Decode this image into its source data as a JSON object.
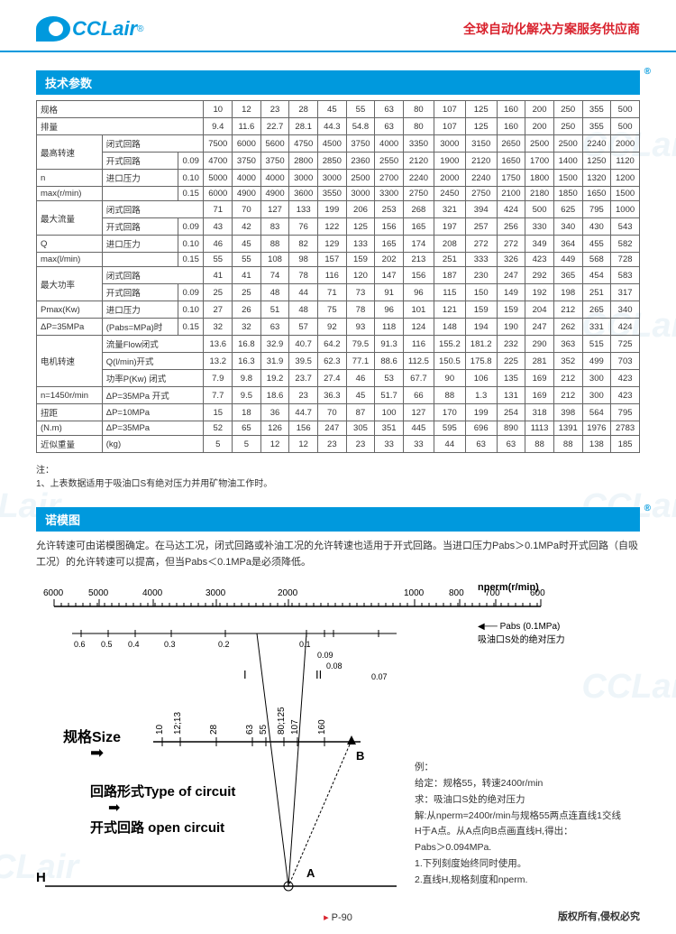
{
  "header": {
    "logo_text": "CCLair",
    "reg": "®",
    "tagline": "全球自动化解决方案服务供应商"
  },
  "section1_title": "技术参数",
  "table": {
    "sizes": [
      "10",
      "12",
      "23",
      "28",
      "45",
      "55",
      "63",
      "80",
      "107",
      "125",
      "160",
      "200",
      "250",
      "355",
      "500"
    ],
    "rows": [
      {
        "g": "规格",
        "s": "",
        "p": "",
        "v": [
          "10",
          "12",
          "23",
          "28",
          "45",
          "55",
          "63",
          "80",
          "107",
          "125",
          "160",
          "200",
          "250",
          "355",
          "500"
        ]
      },
      {
        "g": "排量",
        "s": "",
        "p": "",
        "v": [
          "9.4",
          "11.6",
          "22.7",
          "28.1",
          "44.3",
          "54.8",
          "63",
          "80",
          "107",
          "125",
          "160",
          "200",
          "250",
          "355",
          "500"
        ]
      },
      {
        "g": "最高转速",
        "s": "闭式回路",
        "p": "",
        "v": [
          "7500",
          "6000",
          "5600",
          "4750",
          "4500",
          "3750",
          "4000",
          "3350",
          "3000",
          "3150",
          "2650",
          "2500",
          "2500",
          "2240",
          "2000"
        ]
      },
      {
        "g": "",
        "s": "开式回路",
        "p": "0.09",
        "v": [
          "4700",
          "3750",
          "3750",
          "2800",
          "2850",
          "2360",
          "2550",
          "2120",
          "1900",
          "2120",
          "1650",
          "1700",
          "1400",
          "1250",
          "1120"
        ]
      },
      {
        "g": "n",
        "s": "进口压力",
        "p": "0.10",
        "v": [
          "5000",
          "4000",
          "4000",
          "3000",
          "3000",
          "2500",
          "2700",
          "2240",
          "2000",
          "2240",
          "1750",
          "1800",
          "1500",
          "1320",
          "1200"
        ]
      },
      {
        "g": "max(r/min)",
        "s": "",
        "p": "0.15",
        "v": [
          "6000",
          "4900",
          "4900",
          "3600",
          "3550",
          "3000",
          "3300",
          "2750",
          "2450",
          "2750",
          "2100",
          "2180",
          "1850",
          "1650",
          "1500"
        ]
      },
      {
        "g": "最大流量",
        "s": "闭式回路",
        "p": "",
        "v": [
          "71",
          "70",
          "127",
          "133",
          "199",
          "206",
          "253",
          "268",
          "321",
          "394",
          "424",
          "500",
          "625",
          "795",
          "1000"
        ]
      },
      {
        "g": "",
        "s": "开式回路",
        "p": "0.09",
        "v": [
          "43",
          "42",
          "83",
          "76",
          "122",
          "125",
          "156",
          "165",
          "197",
          "257",
          "256",
          "330",
          "340",
          "430",
          "543"
        ]
      },
      {
        "g": "Q",
        "s": "进口压力",
        "p": "0.10",
        "v": [
          "46",
          "45",
          "88",
          "82",
          "129",
          "133",
          "165",
          "174",
          "208",
          "272",
          "272",
          "349",
          "364",
          "455",
          "582"
        ]
      },
      {
        "g": "max(l/min)",
        "s": "",
        "p": "0.15",
        "v": [
          "55",
          "55",
          "108",
          "98",
          "157",
          "159",
          "202",
          "213",
          "251",
          "333",
          "326",
          "423",
          "449",
          "568",
          "728"
        ]
      },
      {
        "g": "最大功率",
        "s": "闭式回路",
        "p": "",
        "v": [
          "41",
          "41",
          "74",
          "78",
          "116",
          "120",
          "147",
          "156",
          "187",
          "230",
          "247",
          "292",
          "365",
          "454",
          "583"
        ]
      },
      {
        "g": "",
        "s": "开式回路",
        "p": "0.09",
        "v": [
          "25",
          "25",
          "48",
          "44",
          "71",
          "73",
          "91",
          "96",
          "115",
          "150",
          "149",
          "192",
          "198",
          "251",
          "317"
        ]
      },
      {
        "g": "Pmax(Kw)",
        "s": "进口压力",
        "p": "0.10",
        "v": [
          "27",
          "26",
          "51",
          "48",
          "75",
          "78",
          "96",
          "101",
          "121",
          "159",
          "159",
          "204",
          "212",
          "265",
          "340"
        ]
      },
      {
        "g": "ΔP=35MPa",
        "s": "(Pabs=MPa)时",
        "p": "0.15",
        "v": [
          "32",
          "32",
          "63",
          "57",
          "92",
          "93",
          "118",
          "124",
          "148",
          "194",
          "190",
          "247",
          "262",
          "331",
          "424"
        ]
      },
      {
        "g": "电机转速",
        "s": "流量Flow闭式",
        "p": "",
        "v": [
          "13.6",
          "16.8",
          "32.9",
          "40.7",
          "64.2",
          "79.5",
          "91.3",
          "116",
          "155.2",
          "181.2",
          "232",
          "290",
          "363",
          "515",
          "725"
        ]
      },
      {
        "g": "",
        "s": "Q(l/min)开式",
        "p": "",
        "v": [
          "13.2",
          "16.3",
          "31.9",
          "39.5",
          "62.3",
          "77.1",
          "88.6",
          "112.5",
          "150.5",
          "175.8",
          "225",
          "281",
          "352",
          "499",
          "703"
        ]
      },
      {
        "g": "",
        "s": "功率P(Kw) 闭式",
        "p": "",
        "v": [
          "7.9",
          "9.8",
          "19.2",
          "23.7",
          "27.4",
          "46",
          "53",
          "67.7",
          "90",
          "106",
          "135",
          "169",
          "212",
          "300",
          "423"
        ]
      },
      {
        "g": "n=1450r/min",
        "s": "ΔP=35MPa 开式",
        "p": "",
        "v": [
          "7.7",
          "9.5",
          "18.6",
          "23",
          "36.3",
          "45",
          "51.7",
          "66",
          "88",
          "1.3",
          "131",
          "169",
          "212",
          "300",
          "423"
        ]
      },
      {
        "g": "扭距",
        "s": "ΔP=10MPa",
        "p": "",
        "v": [
          "15",
          "18",
          "36",
          "44.7",
          "70",
          "87",
          "100",
          "127",
          "170",
          "199",
          "254",
          "318",
          "398",
          "564",
          "795"
        ]
      },
      {
        "g": "(N.m)",
        "s": "ΔP=35MPa",
        "p": "",
        "v": [
          "52",
          "65",
          "126",
          "156",
          "247",
          "305",
          "351",
          "445",
          "595",
          "696",
          "890",
          "1113",
          "1391",
          "1976",
          "2783"
        ]
      },
      {
        "g": "近似重量",
        "s": "(kg)",
        "p": "",
        "v": [
          "5",
          "5",
          "12",
          "12",
          "23",
          "23",
          "33",
          "33",
          "44",
          "63",
          "63",
          "88",
          "88",
          "138",
          "185"
        ]
      }
    ]
  },
  "note_label": "注：",
  "note_text": "1、上表数据适用于吸油口S有绝对压力并用矿物油工作时。",
  "section2_title": "诺模图",
  "body_text": "允许转速可由诺模图确定。在马达工况，闭式回路或补油工况的允许转速也适用于开式回路。当进口压力Pabs＞0.1MPa时开式回路（自吸工况）的允许转速可以提高，但当Pabs＜0.1MPa是必须降低。",
  "nomogram": {
    "top_scale_label": "nperm(r/min)",
    "top_scale": [
      "6000",
      "5000",
      "4000",
      "3000",
      "2000",
      "1000",
      "800",
      "700",
      "600"
    ],
    "pabs_scale": [
      "0.6",
      "0.5",
      "0.4",
      "0.3",
      "0.2",
      "0.1",
      "0.09",
      "0.08",
      "0.07"
    ],
    "pabs_label": "Pabs (0.1MPa)",
    "pabs_sublabel": "吸油口S处的绝对压力",
    "lines": [
      "I",
      "II"
    ],
    "size_label_zh": "规格",
    "size_label_en": "Size",
    "sizes": [
      "10",
      "12;13",
      "28",
      "63",
      "55",
      "80;125",
      "107",
      "160"
    ],
    "point_b": "B",
    "circuit_zh": "回路形式",
    "circuit_en": "Type of circuit",
    "open_zh": "开式回路",
    "open_en": "open circuit",
    "point_a": "A",
    "h_label": "H"
  },
  "example": {
    "title": "例：",
    "l1": "给定：规格55，转速2400r/min",
    "l2": "求：吸油口S处的绝对压力",
    "l3": "解:从nperm=2400r/min与规格55两点连直线1交线",
    "l4": "H于A点。从A点向B点画直线H,得出：",
    "l5": "Pabs＞0.094MPa.",
    "l6": "1.下列刻度始终同时使用。",
    "l7": "2.直线H,规格刻度和nperm."
  },
  "page_num": "P-90",
  "copyright": "版权所有,侵权必究"
}
